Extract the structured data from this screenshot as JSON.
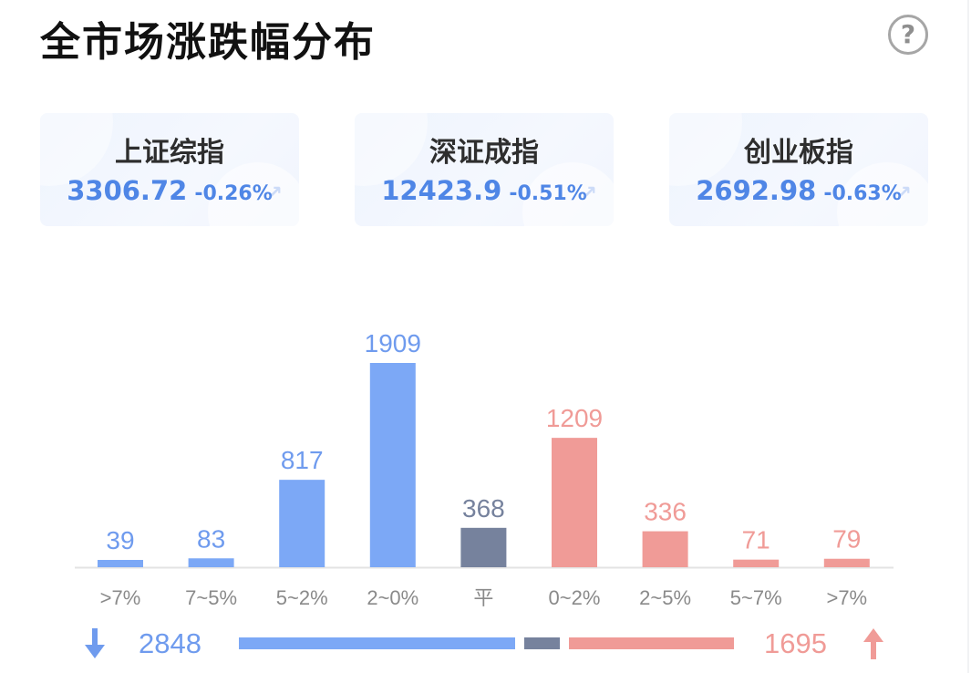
{
  "header": {
    "title": "全市场涨跌幅分布",
    "help_icon": "help-circle-icon",
    "help_glyph": "?"
  },
  "indices": [
    {
      "name": "上证综指",
      "value": "3306.72",
      "change": "-0.26%"
    },
    {
      "name": "深证成指",
      "value": "12423.9",
      "change": "-0.51%"
    },
    {
      "name": "创业板指",
      "value": "2692.98",
      "change": "-0.63%"
    }
  ],
  "colors": {
    "down": "#7ca8f6",
    "flat": "#76829d",
    "up": "#f09b97",
    "down_text": "#6f9bee",
    "up_text": "#f09b97"
  },
  "chart_data": {
    "type": "bar",
    "title": "全市场涨跌幅分布",
    "categories": [
      ">7%",
      "7~5%",
      "5~2%",
      "2~0%",
      "平",
      "0~2%",
      "2~5%",
      "5~7%",
      ">7%"
    ],
    "values": [
      39,
      83,
      817,
      1909,
      368,
      1209,
      336,
      71,
      79
    ],
    "groups": [
      "down",
      "down",
      "down",
      "down",
      "flat",
      "up",
      "up",
      "up",
      "up"
    ],
    "ylim": [
      0,
      1909
    ],
    "grid": false,
    "legend": "none"
  },
  "summary": {
    "down_count": "2848",
    "up_count": "1695",
    "down_icon": "arrow-down-icon",
    "up_icon": "arrow-up-icon"
  }
}
